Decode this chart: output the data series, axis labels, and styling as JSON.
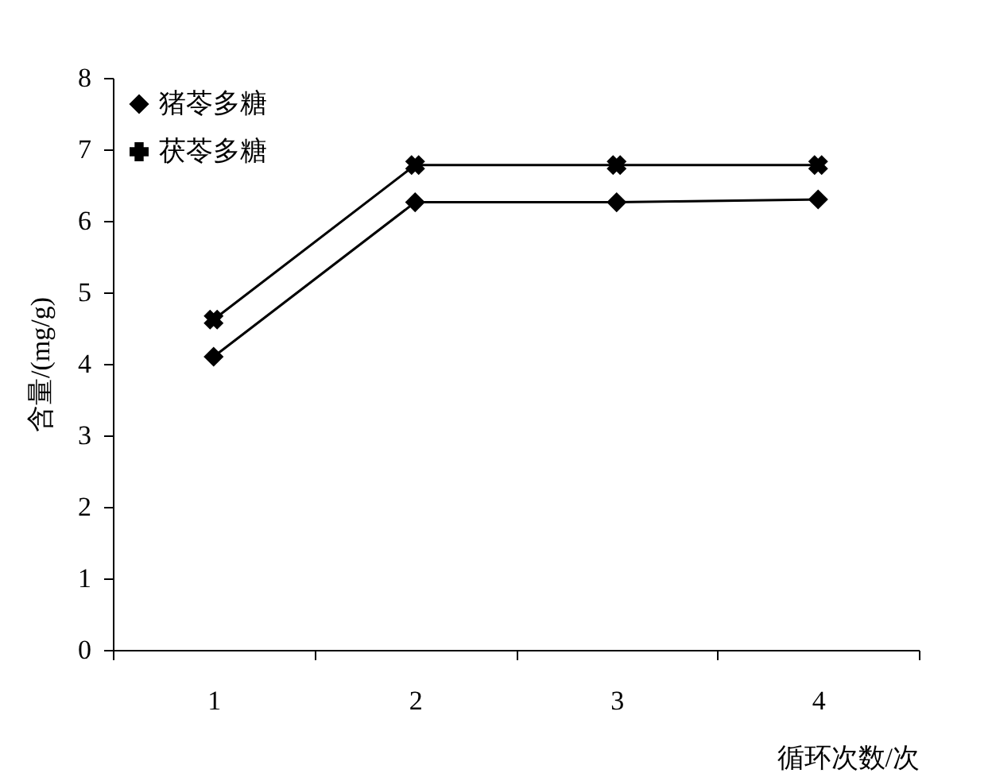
{
  "chart_data": {
    "type": "line",
    "xlabel": "循环次数/次",
    "ylabel": "含量/(mg/g)",
    "categories": [
      "1",
      "2",
      "3",
      "4"
    ],
    "series": [
      {
        "name": "猪苓多糖",
        "color": "#000000",
        "marker": "diamond",
        "values": [
          4.1,
          6.26,
          6.26,
          6.3
        ]
      },
      {
        "name": "茯苓多糖",
        "color": "#000000",
        "marker": "cross",
        "values": [
          4.62,
          6.78,
          6.78,
          6.78
        ]
      }
    ],
    "ylim": [
      0,
      8
    ],
    "yticks": [
      0,
      1,
      2,
      3,
      4,
      5,
      6,
      7,
      8
    ],
    "grid": false,
    "legend": "top left",
    "line_style": "solid"
  }
}
